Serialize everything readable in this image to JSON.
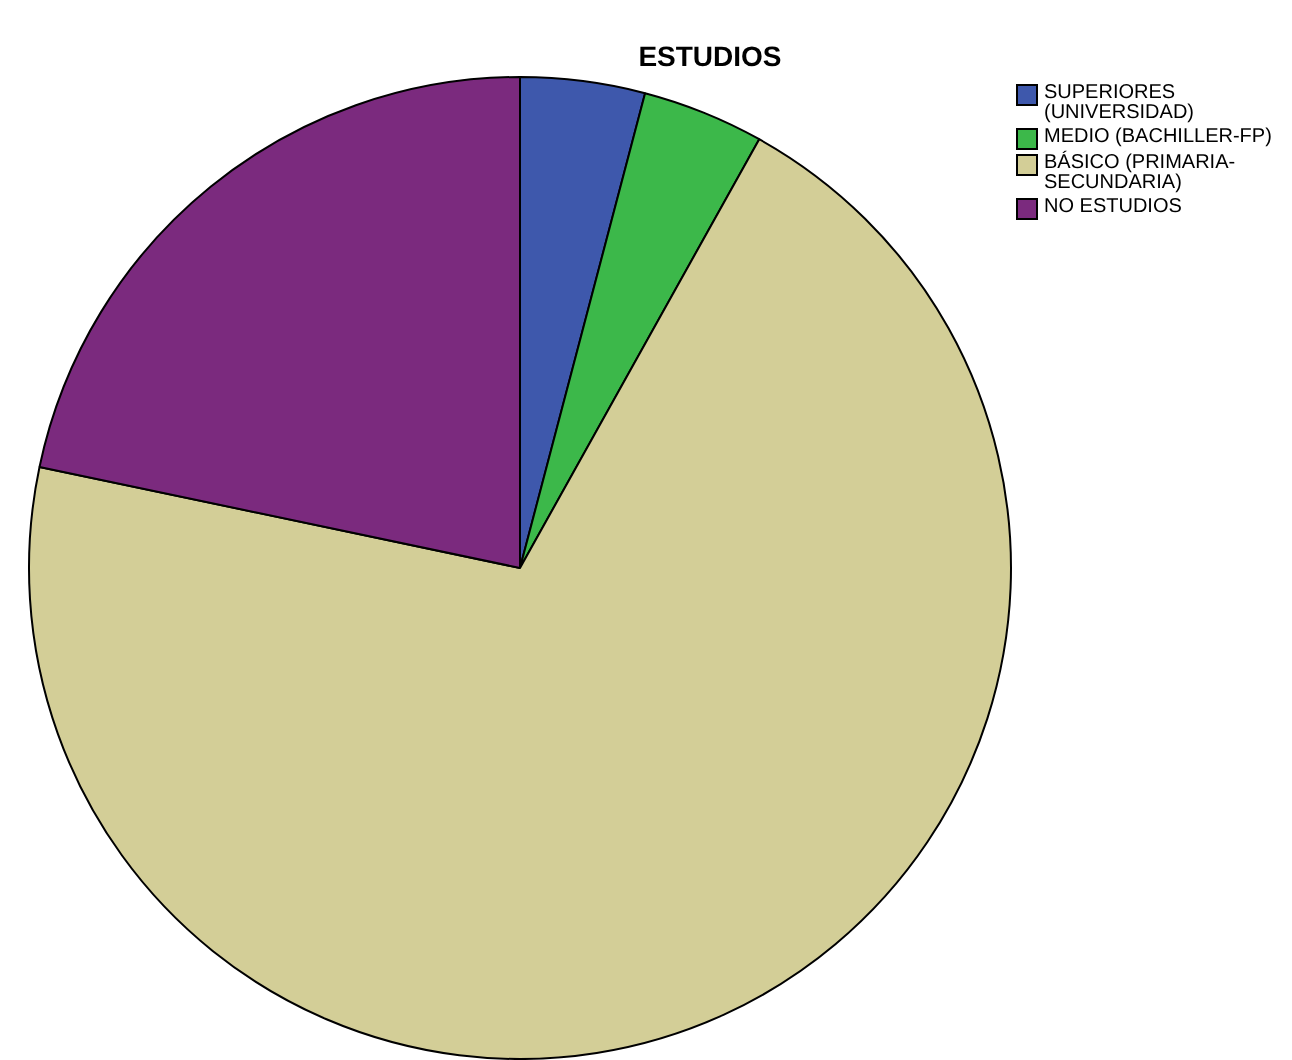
{
  "chart_data": {
    "type": "pie",
    "title": "ESTUDIOS",
    "categories": [
      "SUPERIORES (UNIVERSIDAD)",
      "MEDIO (BACHILLER-FP)",
      "BÁSICO (PRIMARIA-SECUNDARIA)",
      "NO ESTUDIOS"
    ],
    "values": [
      4.1,
      4.0,
      70.2,
      21.7
    ],
    "colors": [
      "#3e58ac",
      "#3cb84a",
      "#d3ce97",
      "#7b2a7e"
    ],
    "legend": "top right"
  }
}
